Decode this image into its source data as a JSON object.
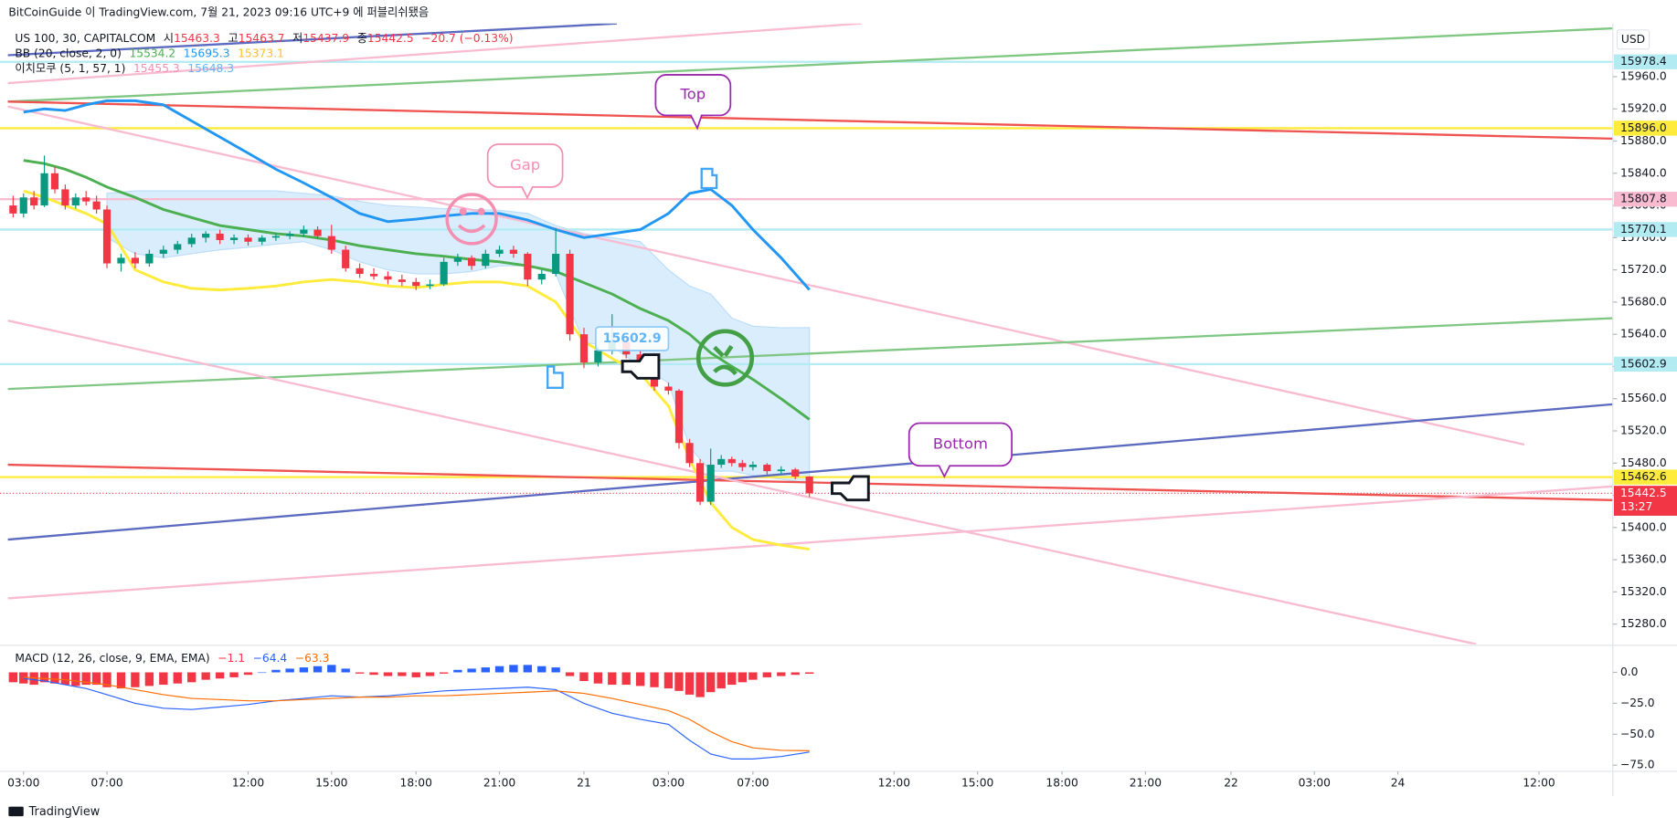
{
  "header": {
    "published": "BitCoinGuide 이 TradingView.com, 7월 21, 2023 09:16 UTC+9 에 퍼블리쉬됐음"
  },
  "legend": {
    "symbol": "US 100, 30, CAPITALCOM",
    "open_label": "시",
    "open": 15463.3,
    "high_label": "고",
    "high": 15463.7,
    "low_label": "저",
    "low": 15437.9,
    "close_label": "종",
    "close": 15442.5,
    "change": "−20.7 (−0.13%)"
  },
  "bb_legend": {
    "label": "BB (20, close, 2, 0)",
    "values": [
      15534.2,
      15695.3,
      15373.1
    ]
  },
  "ichimoku_legend": {
    "label": "이치모쿠 (5, 1, 57, 1)",
    "values": [
      15455.3,
      15648.3
    ]
  },
  "macd_legend": {
    "label": "MACD (12, 26, close, 9, EMA, EMA)",
    "values": [
      {
        "value": -1.1,
        "label": "−1.1"
      },
      {
        "value": -64.4,
        "label": "−64.4"
      },
      {
        "value": -63.3,
        "label": "−63.3"
      }
    ]
  },
  "currency": "USD",
  "countdown": "13:27",
  "footer": "TradingView",
  "chart_data": {
    "type": "candlestick",
    "x": [
      "2023-07-20T02:30",
      "2023-07-20T03:00",
      "2023-07-20T03:30",
      "2023-07-20T04:00",
      "2023-07-20T04:30",
      "2023-07-20T05:00",
      "2023-07-20T05:30",
      "2023-07-20T06:00",
      "2023-07-20T06:30",
      "2023-07-20T07:00",
      "2023-07-20T07:30",
      "2023-07-20T08:00",
      "2023-07-20T08:30",
      "2023-07-20T09:00",
      "2023-07-20T09:30",
      "2023-07-20T10:00",
      "2023-07-20T10:30",
      "2023-07-20T11:00",
      "2023-07-20T11:30",
      "2023-07-20T12:00",
      "2023-07-20T12:30",
      "2023-07-20T13:00",
      "2023-07-20T13:30",
      "2023-07-20T14:00",
      "2023-07-20T14:30",
      "2023-07-20T15:00",
      "2023-07-20T15:30",
      "2023-07-20T16:00",
      "2023-07-20T16:30",
      "2023-07-20T17:00",
      "2023-07-20T17:30",
      "2023-07-20T18:00",
      "2023-07-20T18:30",
      "2023-07-20T19:00",
      "2023-07-20T19:30",
      "2023-07-20T20:00",
      "2023-07-20T20:30",
      "2023-07-20T21:00",
      "2023-07-20T21:30",
      "2023-07-20T22:00",
      "2023-07-20T22:30",
      "2023-07-20T23:00",
      "2023-07-20T23:30",
      "2023-07-21T00:00",
      "2023-07-21T00:30",
      "2023-07-21T01:00",
      "2023-07-21T01:30",
      "2023-07-21T02:00",
      "2023-07-21T02:30",
      "2023-07-21T03:00",
      "2023-07-21T03:30",
      "2023-07-21T04:00",
      "2023-07-21T04:30",
      "2023-07-21T05:00",
      "2023-07-21T05:30",
      "2023-07-21T06:00",
      "2023-07-21T06:30",
      "2023-07-21T07:00",
      "2023-07-21T07:30",
      "2023-07-21T08:00",
      "2023-07-21T08:30",
      "2023-07-21T09:00"
    ],
    "open": [
      15800,
      15790,
      15810,
      15800,
      15840,
      15820,
      15800,
      15810,
      15805,
      15795,
      15728,
      15735,
      15728,
      15740,
      15745,
      15752,
      15760,
      15765,
      15757,
      15760,
      15755,
      15760,
      15762,
      15765,
      15770,
      15762,
      15745,
      15722,
      15715,
      15712,
      15708,
      15705,
      15700,
      15702,
      15730,
      15735,
      15725,
      15740,
      15745,
      15740,
      15708,
      15715,
      15740,
      15640,
      15605,
      15620,
      15630,
      15615,
      15590,
      15575,
      15570,
      15505,
      15480,
      15432,
      15478,
      15485,
      15480,
      15475,
      15478,
      15470,
      15472,
      15463.3
    ],
    "high": [
      15812,
      15815,
      15818,
      15862,
      15848,
      15826,
      15815,
      15818,
      15812,
      15800,
      15740,
      15742,
      15745,
      15750,
      15756,
      15765,
      15768,
      15770,
      15764,
      15764,
      15763,
      15766,
      15768,
      15775,
      15774,
      15776,
      15750,
      15728,
      15722,
      15718,
      15714,
      15710,
      15708,
      15735,
      15740,
      15738,
      15745,
      15750,
      15750,
      15742,
      15720,
      15772,
      15745,
      15648,
      15625,
      15665,
      15638,
      15620,
      15595,
      15580,
      15572,
      15510,
      15485,
      15498,
      15490,
      15488,
      15484,
      15482,
      15480,
      15476,
      15474,
      15463.7
    ],
    "low": [
      15785,
      15785,
      15795,
      15798,
      15815,
      15795,
      15796,
      15800,
      15790,
      15722,
      15718,
      15722,
      15724,
      15735,
      15740,
      15748,
      15754,
      15752,
      15752,
      15750,
      15751,
      15756,
      15758,
      15761,
      15758,
      15740,
      15718,
      15710,
      15708,
      15702,
      15700,
      15695,
      15696,
      15700,
      15725,
      15720,
      15722,
      15736,
      15735,
      15700,
      15702,
      15712,
      15632,
      15598,
      15600,
      15615,
      15610,
      15585,
      15570,
      15565,
      15498,
      15475,
      15428,
      15428,
      15474,
      15476,
      15470,
      15471,
      15466,
      15466,
      15460,
      15437.9
    ],
    "close": [
      15790,
      15810,
      15800,
      15840,
      15820,
      15800,
      15810,
      15805,
      15795,
      15728,
      15735,
      15728,
      15740,
      15745,
      15752,
      15760,
      15765,
      15757,
      15760,
      15755,
      15760,
      15762,
      15765,
      15770,
      15762,
      15745,
      15722,
      15715,
      15712,
      15708,
      15705,
      15700,
      15702,
      15730,
      15735,
      15725,
      15740,
      15745,
      15740,
      15708,
      15715,
      15740,
      15640,
      15605,
      15620,
      15630,
      15615,
      15590,
      15575,
      15570,
      15505,
      15480,
      15432,
      15478,
      15485,
      15480,
      15475,
      15478,
      15470,
      15472,
      15463.3,
      15442.5
    ],
    "up_color": "#089981",
    "down_color": "#f23645",
    "ylim": [
      15255,
      16026
    ],
    "yticks": [
      {
        "value": 15960,
        "label": "15960.0"
      },
      {
        "value": 15920,
        "label": "15920.0"
      },
      {
        "value": 15880,
        "label": "15880.0"
      },
      {
        "value": 15840,
        "label": "15840.0"
      },
      {
        "value": 15800,
        "label": "15800.0"
      },
      {
        "value": 15760,
        "label": "15760.0"
      },
      {
        "value": 15720,
        "label": "15720.0"
      },
      {
        "value": 15680,
        "label": "15680.0"
      },
      {
        "value": 15640,
        "label": "15640.0"
      },
      {
        "value": 15600,
        "label": "15600.0"
      },
      {
        "value": 15560,
        "label": "15560.0"
      },
      {
        "value": 15520,
        "label": "15520.0"
      },
      {
        "value": 15480,
        "label": "15480.0"
      },
      {
        "value": 15440,
        "label": "15440.0"
      },
      {
        "value": 15400,
        "label": "15400.0"
      },
      {
        "value": 15360,
        "label": "15360.0"
      },
      {
        "value": 15320,
        "label": "15320.0"
      },
      {
        "value": 15280,
        "label": "15280.0"
      }
    ],
    "xticks": [
      {
        "value": "2023-07-20T03:00",
        "label": "03:00"
      },
      {
        "value": "2023-07-20T07:00",
        "label": "07:00"
      },
      {
        "value": "2023-07-20T12:00",
        "label": "12:00"
      },
      {
        "value": "2023-07-20T15:00",
        "label": "15:00"
      },
      {
        "value": "2023-07-20T18:00",
        "label": "18:00"
      },
      {
        "value": "2023-07-20T21:00",
        "label": "21:00"
      },
      {
        "value": "2023-07-21T00:00",
        "label": "21"
      },
      {
        "value": "2023-07-21T03:00",
        "label": "03:00"
      },
      {
        "value": "2023-07-21T07:00",
        "label": "07:00"
      },
      {
        "value": "2023-07-21T12:00",
        "label": "12:00"
      },
      {
        "value": "2023-07-21T15:00",
        "label": "15:00"
      },
      {
        "value": "2023-07-21T18:00",
        "label": "18:00"
      },
      {
        "value": "2023-07-21T21:00",
        "label": "21:00"
      },
      {
        "value": "2023-07-22T00:00",
        "label": "22"
      },
      {
        "value": "2023-07-22T03:00",
        "label": "03:00"
      },
      {
        "value": "2023-07-24T00:00",
        "label": "24"
      },
      {
        "value": "2023-07-24T12:00",
        "label": "12:00"
      }
    ],
    "bollinger": {
      "x": [
        "2023-07-20T03:00",
        "2023-07-20T04:00",
        "2023-07-20T05:00",
        "2023-07-20T06:00",
        "2023-07-20T07:00",
        "2023-07-20T08:00",
        "2023-07-20T09:00",
        "2023-07-20T10:00",
        "2023-07-20T11:00",
        "2023-07-20T12:00",
        "2023-07-20T13:00",
        "2023-07-20T14:00",
        "2023-07-20T15:00",
        "2023-07-20T16:00",
        "2023-07-20T17:00",
        "2023-07-20T18:00",
        "2023-07-20T19:00",
        "2023-07-20T20:00",
        "2023-07-20T21:00",
        "2023-07-20T22:00",
        "2023-07-20T23:00",
        "2023-07-21T00:00",
        "2023-07-21T01:00",
        "2023-07-21T02:00",
        "2023-07-21T03:00",
        "2023-07-21T04:00",
        "2023-07-21T05:00",
        "2023-07-21T06:00",
        "2023-07-21T07:00",
        "2023-07-21T08:00",
        "2023-07-21T09:00"
      ],
      "upper": [
        15916,
        15920,
        15918,
        15925,
        15930,
        15930,
        15925,
        15905,
        15885,
        15865,
        15845,
        15828,
        15810,
        15790,
        15780,
        15783,
        15787,
        15790,
        15790,
        15782,
        15770,
        15760,
        15765,
        15770,
        15790,
        15815,
        15820,
        15800,
        15770,
        15735,
        15695.3
      ],
      "basis": [
        15856,
        15852,
        15845,
        15835,
        15823,
        15810,
        15795,
        15785,
        15775,
        15770,
        15765,
        15762,
        15757,
        15750,
        15745,
        15740,
        15737,
        15733,
        15730,
        15725,
        15718,
        15704,
        15690,
        15672,
        15657,
        15640,
        15617,
        15600,
        15584,
        15560,
        15534.2
      ],
      "lower": [
        15818,
        15810,
        15800,
        15790,
        15777,
        15720,
        15705,
        15697,
        15695,
        15697,
        15700,
        15705,
        15708,
        15705,
        15700,
        15698,
        15702,
        15705,
        15705,
        15700,
        15680,
        15631,
        15610,
        15591,
        15551,
        15485,
        15431,
        15400,
        15385,
        15378,
        15373.1
      ],
      "upper_color": "#2196f3",
      "basis_color": "#4caf50",
      "lower_color": "#ffeb3b"
    },
    "ichimoku": {
      "x": [
        "2023-07-20T07:00",
        "2023-07-20T08:00",
        "2023-07-20T09:00",
        "2023-07-20T10:00",
        "2023-07-20T11:00",
        "2023-07-20T12:00",
        "2023-07-20T13:00",
        "2023-07-20T14:00",
        "2023-07-20T15:00",
        "2023-07-20T16:00",
        "2023-07-20T17:00",
        "2023-07-20T18:00",
        "2023-07-20T19:00",
        "2023-07-20T20:00",
        "2023-07-20T21:00",
        "2023-07-20T22:00",
        "2023-07-20T23:00",
        "2023-07-21T00:00",
        "2023-07-21T01:00",
        "2023-07-21T02:00",
        "2023-07-21T03:00",
        "2023-07-21T04:00",
        "2023-07-21T05:00",
        "2023-07-21T06:00",
        "2023-07-21T07:00",
        "2023-07-21T08:00",
        "2023-07-21T09:00"
      ],
      "span_a": [
        15815,
        15818,
        15818,
        15818,
        15818,
        15818,
        15818,
        15815,
        15812,
        15805,
        15800,
        15798,
        15796,
        15795,
        15794,
        15790,
        15775,
        15765,
        15760,
        15755,
        15720,
        15700,
        15690,
        15660,
        15650,
        15648,
        15648.3
      ],
      "span_b": [
        15760,
        15740,
        15735,
        15740,
        15745,
        15748,
        15752,
        15755,
        15745,
        15730,
        15720,
        15715,
        15715,
        15718,
        15725,
        15725,
        15715,
        15630,
        15625,
        15600,
        15580,
        15500,
        15470,
        15470,
        15465,
        15460,
        15455.3
      ],
      "color": "#bbdefb"
    },
    "price_lines": [
      {
        "price": 15978.4,
        "label": "15978.4",
        "color": "#b2ebf2"
      },
      {
        "price": 15896,
        "label": "15896.0",
        "color": "#ffeb3b"
      },
      {
        "price": 15807.8,
        "label": "15807.8",
        "color": "#f8bbd0"
      },
      {
        "price": 15770.1,
        "label": "15770.1",
        "color": "#b2ebf2"
      },
      {
        "price": 15602.9,
        "label": "15602.9",
        "color": "#b2ebf2"
      },
      {
        "price": 15462.6,
        "label": "15462.6",
        "color": "#ffeb3b"
      },
      {
        "price": 15442.5,
        "label": "15442.5",
        "color": "#f23645",
        "dotted": true
      }
    ],
    "trend_lines": [
      {
        "x": [
          "2023-07-20T02:15",
          "2023-07-21T01:10"
        ],
        "y": [
          15986.6,
          16026
        ],
        "color": "#5c6bc0"
      },
      {
        "x": [
          "2023-07-20T02:15",
          "2023-07-21T10:50"
        ],
        "y": [
          15952,
          16026
        ],
        "color": "#f8bbd0"
      },
      {
        "x": [
          "2023-07-20T02:15",
          "2023-07-24T18:15"
        ],
        "y": [
          15929,
          16020
        ],
        "color": "#81c784"
      },
      {
        "x": [
          "2023-07-20T02:15",
          "2023-07-24T18:15"
        ],
        "y": [
          15929,
          15883
        ],
        "color": "#ef5350"
      },
      {
        "x": [
          "2023-07-20T02:15",
          "2023-07-24T10:45"
        ],
        "y": [
          15923,
          15503
        ],
        "color": "#f8bbd0"
      },
      {
        "x": [
          "2023-07-20T02:15",
          "2023-07-24T18:15"
        ],
        "y": [
          15572,
          15660
        ],
        "color": "#81c784"
      },
      {
        "x": [
          "2023-07-20T02:15",
          "2023-07-24T18:15"
        ],
        "y": [
          15385,
          15553
        ],
        "color": "#5c6bc0"
      },
      {
        "x": [
          "2023-07-20T02:15",
          "2023-07-24T18:15"
        ],
        "y": [
          15478,
          15434
        ],
        "color": "#ef5350"
      },
      {
        "x": [
          "2023-07-20T02:15",
          "2023-07-24T06:40"
        ],
        "y": [
          15657,
          15255
        ],
        "color": "#f8bbd0"
      },
      {
        "x": [
          "2023-07-20T02:15",
          "2023-07-24T18:15"
        ],
        "y": [
          15312,
          15451
        ],
        "color": "#f8bbd0"
      }
    ],
    "annotations": [
      {
        "text": "Top"
      },
      {
        "text": "Gap"
      },
      {
        "text": "Bottom"
      }
    ],
    "macd": {
      "x": [
        "2023-07-20T03:00",
        "2023-07-20T04:00",
        "2023-07-20T05:00",
        "2023-07-20T06:00",
        "2023-07-20T07:00",
        "2023-07-20T08:00",
        "2023-07-20T09:00",
        "2023-07-20T10:00",
        "2023-07-20T11:00",
        "2023-07-20T12:00",
        "2023-07-20T13:00",
        "2023-07-20T14:00",
        "2023-07-20T15:00",
        "2023-07-20T16:00",
        "2023-07-20T17:00",
        "2023-07-20T18:00",
        "2023-07-20T19:00",
        "2023-07-20T20:00",
        "2023-07-20T21:00",
        "2023-07-20T22:00",
        "2023-07-20T23:00",
        "2023-07-21T00:00",
        "2023-07-21T01:00",
        "2023-07-21T02:00",
        "2023-07-21T03:00",
        "2023-07-21T04:00",
        "2023-07-21T05:00",
        "2023-07-21T06:00",
        "2023-07-21T07:00",
        "2023-07-21T08:00",
        "2023-07-21T09:00"
      ],
      "macd": [
        -5,
        -7,
        -10,
        -13,
        -18,
        -25,
        -29,
        -30,
        -28,
        -26,
        -23,
        -21,
        -19,
        -20,
        -19,
        -17,
        -15,
        -14,
        -13,
        -12,
        -14,
        -25,
        -33,
        -38,
        -42,
        -55,
        -66,
        -70,
        -70,
        -68,
        -64.4
      ],
      "signal": [
        -4,
        -5,
        -6,
        -8,
        -10,
        -14,
        -18,
        -21,
        -22,
        -23,
        -23,
        -22,
        -21,
        -20,
        -20,
        -19,
        -19,
        -18,
        -17,
        -16,
        -15,
        -17,
        -21,
        -26,
        -31,
        -38,
        -48,
        -56,
        -61,
        -63,
        -63.3
      ],
      "histogram": [
        -8,
        -9,
        -10,
        -8,
        -9,
        -10,
        -11,
        -10,
        -10,
        -12,
        -13,
        -12,
        -11,
        -10,
        -9,
        -8,
        -6,
        -5,
        -4,
        -2,
        0,
        2,
        3,
        4,
        5,
        6,
        3,
        -1,
        -2,
        -3,
        -3,
        -4,
        -3,
        -1,
        2,
        3,
        4,
        5,
        6,
        6,
        5,
        4,
        -3,
        -7,
        -9,
        -10,
        -10,
        -11,
        -12,
        -13,
        -15,
        -18,
        -20,
        -16,
        -13,
        -10,
        -8,
        -6,
        -4,
        -3,
        -2,
        -1.1
      ],
      "macd_color": "#2962ff",
      "signal_color": "#ff6d00",
      "positive_color": "#2962ff",
      "negative_color": "#f23645",
      "ylim": [
        -80,
        21
      ],
      "yticks": [
        {
          "value": 0,
          "label": "0.0"
        },
        {
          "value": -25,
          "label": "−25.0"
        },
        {
          "value": -50,
          "label": "−50.0"
        },
        {
          "value": -75,
          "label": "−75.0"
        }
      ]
    }
  }
}
